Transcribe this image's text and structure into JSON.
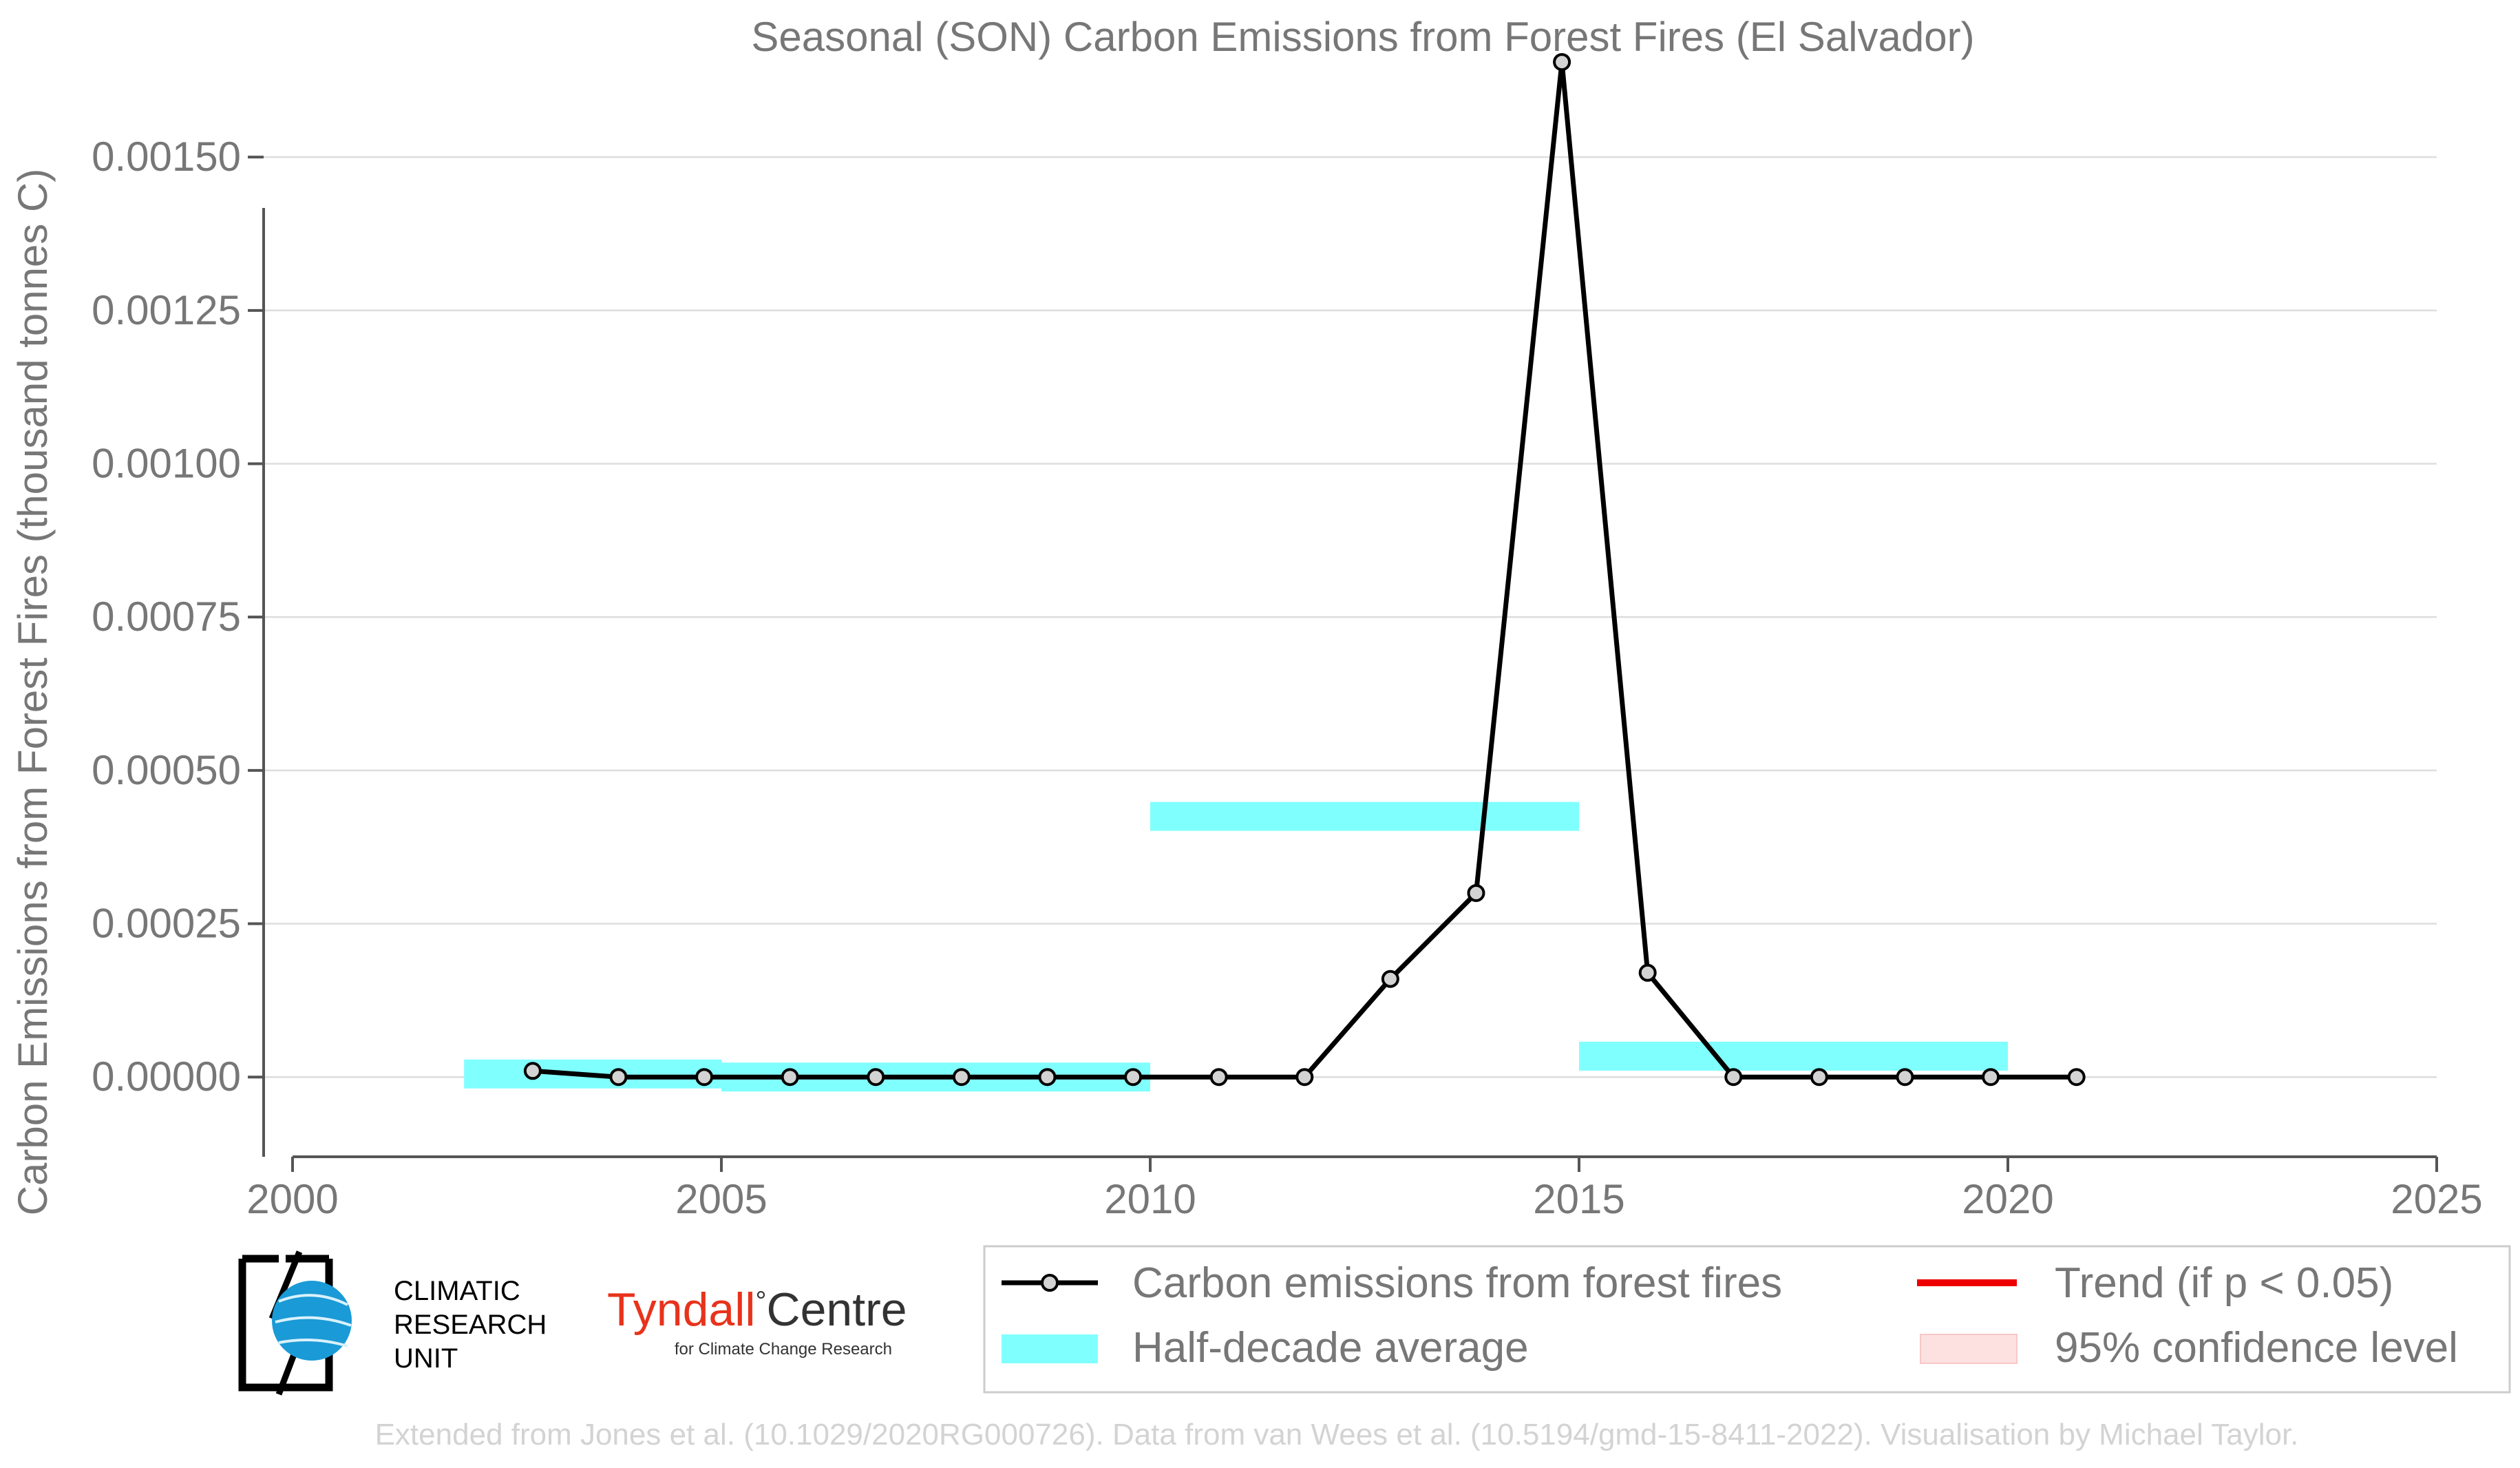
{
  "chart_data": {
    "type": "line",
    "title": "Seasonal (SON) Carbon Emissions from Forest Fires (El Salvador)",
    "xlabel": "",
    "ylabel": "Carbon Emissions from Forest Fires (thousand tonnes C)",
    "xlim": [
      2000,
      2025
    ],
    "ylim": [
      -0.00013,
      0.0017
    ],
    "x_ticks": [
      2000,
      2005,
      2010,
      2015,
      2020,
      2025
    ],
    "y_ticks": [
      0,
      0.00025,
      0.0005,
      0.00075,
      0.001,
      0.00125,
      0.0015
    ],
    "x_tick_labels": [
      "2000",
      "2005",
      "2010",
      "2015",
      "2020",
      "2025"
    ],
    "y_tick_labels": [
      "0.00000",
      "0.00025",
      "0.00050",
      "0.00075",
      "0.00100",
      "0.00125",
      "0.00150"
    ],
    "grid": "horizontal",
    "series": [
      {
        "name": "Carbon emissions from forest fires",
        "color": "#000000",
        "marker_fill": "#d3d3d3",
        "x": [
          2002.8,
          2003.8,
          2004.8,
          2005.8,
          2006.8,
          2007.8,
          2008.8,
          2009.8,
          2010.8,
          2011.8,
          2012.8,
          2013.8,
          2014.8,
          2015.8,
          2016.8,
          2017.8,
          2018.8,
          2019.8,
          2020.8
        ],
        "y": [
          1e-05,
          0,
          0,
          0,
          0,
          0,
          0,
          0,
          0,
          0,
          0.00016,
          0.0003,
          0.001655,
          0.00017,
          0,
          0,
          0,
          0,
          0
        ]
      },
      {
        "name": "Half-decade average",
        "color": "#80ffff",
        "periods": [
          {
            "start": 2002,
            "end": 2005,
            "value": 5e-06
          },
          {
            "start": 2005,
            "end": 2010,
            "value": 0
          },
          {
            "start": 2010,
            "end": 2015,
            "value": 0.000425
          },
          {
            "start": 2015,
            "end": 2020,
            "value": 3.4e-05
          }
        ]
      }
    ],
    "legend": {
      "placement": "bottom-right",
      "items": [
        {
          "label": "Carbon emissions from forest fires",
          "kind": "line-marker",
          "color": "#000000"
        },
        {
          "label": "Trend (if p < 0.05)",
          "kind": "line",
          "color": "#ee0000"
        },
        {
          "label": "Half-decade average",
          "kind": "patch",
          "color": "#80ffff"
        },
        {
          "label": "95% confidence level",
          "kind": "patch",
          "color": "#fde0e0"
        }
      ]
    }
  },
  "logos": {
    "cru_lines": [
      "CLIMATIC",
      "RESEARCH",
      "UNIT"
    ],
    "tyndall_main": "Tyndall",
    "tyndall_degree": "°",
    "tyndall_centre": "Centre",
    "tyndall_sub": "for Climate Change Research"
  },
  "source_note": "Extended from Jones et al. (10.1029/2020RG000726). Data from van Wees et al. (10.5194/gmd-15-8411-2022). Visualisation by Michael Taylor."
}
